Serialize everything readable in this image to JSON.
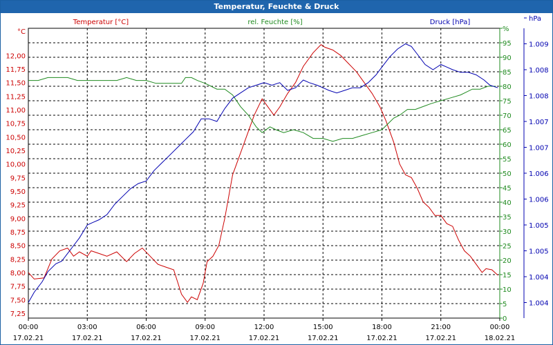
{
  "window": {
    "title": "Temperatur, Feuchte & Druck"
  },
  "colors": {
    "temperature": "#cc0000",
    "humidity": "#1f8a1f",
    "pressure": "#0000b0",
    "grid": "#000000",
    "titlebar": "#1f65ad"
  },
  "chart_data": {
    "type": "line",
    "title": "Temperatur, Feuchte & Druck",
    "legend": [
      "Temperatur [°C]",
      "rel. Feuchte [%]",
      "Druck [hPa]"
    ],
    "x_ticks": [
      {
        "t": 0,
        "time": "00:00",
        "date": "17.02.21"
      },
      {
        "t": 3,
        "time": "03:00",
        "date": "17.02.21"
      },
      {
        "t": 6,
        "time": "06:00",
        "date": "17.02.21"
      },
      {
        "t": 9,
        "time": "09:00",
        "date": "17.02.21"
      },
      {
        "t": 12,
        "time": "12:00",
        "date": "17.02.21"
      },
      {
        "t": 15,
        "time": "15:00",
        "date": "17.02.21"
      },
      {
        "t": 18,
        "time": "18:00",
        "date": "17.02.21"
      },
      {
        "t": 21,
        "time": "21:00",
        "date": "17.02.21"
      },
      {
        "t": 24,
        "time": "00:00",
        "date": "18.02.21"
      }
    ],
    "xlim": [
      0,
      24
    ],
    "axes": {
      "temperature": {
        "unit": "°C",
        "ylim": [
          7.16,
          12.5
        ],
        "ticks": [
          "7,25",
          "7,50",
          "7,75",
          "8,00",
          "8,25",
          "8,50",
          "8,75",
          "9,00",
          "9,25",
          "9,50",
          "9,75",
          "10,00",
          "10,25",
          "10,50",
          "10,75",
          "11,00",
          "11,25",
          "11,50",
          "11,75",
          "12,00"
        ],
        "tick_values": [
          7.25,
          7.5,
          7.75,
          8.0,
          8.25,
          8.5,
          8.75,
          9.0,
          9.25,
          9.5,
          9.75,
          10.0,
          10.25,
          10.5,
          10.75,
          11.0,
          11.25,
          11.5,
          11.75,
          12.0
        ]
      },
      "humidity": {
        "unit": "%",
        "ylim": [
          0,
          100
        ],
        "ticks": [
          "0",
          "5",
          "10",
          "15",
          "20",
          "25",
          "30",
          "35",
          "40",
          "45",
          "50",
          "55",
          "60",
          "65",
          "70",
          "75",
          "80",
          "85",
          "90",
          "95",
          "%"
        ],
        "tick_values": [
          0,
          5,
          10,
          15,
          20,
          25,
          30,
          35,
          40,
          45,
          50,
          55,
          60,
          65,
          70,
          75,
          80,
          85,
          90,
          95,
          100
        ]
      },
      "pressure": {
        "unit": "hPa",
        "ylim": [
          1003.5,
          1009.1
        ],
        "ticks": [
          "1.004",
          "1.004",
          "1.005",
          "1.005",
          "1.006",
          "1.006",
          "1.007",
          "1.007",
          "1.008",
          "1.008",
          "1.009",
          "hPa"
        ],
        "tick_values": [
          1003.8,
          1004.3,
          1004.8,
          1005.3,
          1005.8,
          1006.3,
          1006.8,
          1007.3,
          1007.8,
          1008.3,
          1008.8,
          1009.3
        ]
      }
    },
    "series": [
      {
        "name": "Temperatur [°C]",
        "axis": "temperature",
        "points": [
          [
            0,
            8.0
          ],
          [
            0.3,
            7.88
          ],
          [
            0.8,
            7.9
          ],
          [
            1.2,
            8.25
          ],
          [
            1.6,
            8.4
          ],
          [
            2.0,
            8.45
          ],
          [
            2.3,
            8.3
          ],
          [
            2.6,
            8.38
          ],
          [
            3.0,
            8.3
          ],
          [
            3.2,
            8.4
          ],
          [
            3.6,
            8.35
          ],
          [
            4.0,
            8.3
          ],
          [
            4.5,
            8.38
          ],
          [
            5.0,
            8.2
          ],
          [
            5.4,
            8.35
          ],
          [
            5.8,
            8.45
          ],
          [
            6.2,
            8.3
          ],
          [
            6.6,
            8.15
          ],
          [
            7.0,
            8.1
          ],
          [
            7.4,
            8.05
          ],
          [
            7.8,
            7.6
          ],
          [
            8.1,
            7.45
          ],
          [
            8.3,
            7.55
          ],
          [
            8.6,
            7.5
          ],
          [
            8.9,
            7.8
          ],
          [
            9.1,
            8.2
          ],
          [
            9.4,
            8.3
          ],
          [
            9.7,
            8.5
          ],
          [
            10.0,
            9.0
          ],
          [
            10.4,
            9.8
          ],
          [
            10.8,
            10.2
          ],
          [
            11.2,
            10.6
          ],
          [
            11.5,
            10.9
          ],
          [
            11.9,
            11.2
          ],
          [
            12.1,
            11.1
          ],
          [
            12.5,
            10.9
          ],
          [
            12.8,
            11.05
          ],
          [
            13.2,
            11.3
          ],
          [
            13.6,
            11.5
          ],
          [
            14.0,
            11.8
          ],
          [
            14.5,
            12.05
          ],
          [
            14.9,
            12.2
          ],
          [
            15.1,
            12.15
          ],
          [
            15.5,
            12.1
          ],
          [
            15.9,
            12.0
          ],
          [
            16.3,
            11.85
          ],
          [
            16.7,
            11.7
          ],
          [
            17.1,
            11.5
          ],
          [
            17.5,
            11.3
          ],
          [
            17.9,
            11.05
          ],
          [
            18.2,
            10.8
          ],
          [
            18.6,
            10.4
          ],
          [
            18.9,
            10.0
          ],
          [
            19.2,
            9.8
          ],
          [
            19.5,
            9.75
          ],
          [
            19.8,
            9.55
          ],
          [
            20.1,
            9.3
          ],
          [
            20.4,
            9.2
          ],
          [
            20.7,
            9.05
          ],
          [
            21.0,
            9.05
          ],
          [
            21.3,
            8.9
          ],
          [
            21.6,
            8.85
          ],
          [
            21.9,
            8.6
          ],
          [
            22.2,
            8.4
          ],
          [
            22.5,
            8.3
          ],
          [
            22.8,
            8.15
          ],
          [
            23.1,
            8.0
          ],
          [
            23.3,
            8.07
          ],
          [
            23.6,
            8.05
          ],
          [
            23.9,
            7.95
          ]
        ]
      },
      {
        "name": "rel. Feuchte [%]",
        "axis": "humidity",
        "points": [
          [
            0,
            82
          ],
          [
            0.5,
            82
          ],
          [
            1.0,
            83
          ],
          [
            1.5,
            83
          ],
          [
            2.0,
            83
          ],
          [
            2.5,
            82
          ],
          [
            3.0,
            82
          ],
          [
            3.5,
            82
          ],
          [
            4.0,
            82
          ],
          [
            4.5,
            82
          ],
          [
            5.0,
            83
          ],
          [
            5.5,
            82
          ],
          [
            6.0,
            82
          ],
          [
            6.5,
            81
          ],
          [
            7.0,
            81
          ],
          [
            7.5,
            81
          ],
          [
            7.8,
            81
          ],
          [
            8.0,
            83
          ],
          [
            8.3,
            83
          ],
          [
            8.6,
            82
          ],
          [
            9.0,
            81
          ],
          [
            9.3,
            80
          ],
          [
            9.6,
            79
          ],
          [
            10.0,
            79
          ],
          [
            10.4,
            77
          ],
          [
            10.8,
            73
          ],
          [
            11.2,
            70
          ],
          [
            11.6,
            66
          ],
          [
            11.9,
            64
          ],
          [
            12.3,
            66
          ],
          [
            12.6,
            65
          ],
          [
            13.0,
            64
          ],
          [
            13.5,
            65
          ],
          [
            14.0,
            64
          ],
          [
            14.5,
            62
          ],
          [
            15.0,
            62
          ],
          [
            15.5,
            61
          ],
          [
            16.0,
            62
          ],
          [
            16.5,
            62
          ],
          [
            17.0,
            63
          ],
          [
            17.5,
            64
          ],
          [
            18.0,
            65
          ],
          [
            18.3,
            67
          ],
          [
            18.6,
            69
          ],
          [
            18.9,
            70
          ],
          [
            19.3,
            72
          ],
          [
            19.7,
            72
          ],
          [
            20.1,
            73
          ],
          [
            20.5,
            74
          ],
          [
            21.0,
            75
          ],
          [
            21.5,
            76
          ],
          [
            22.0,
            77
          ],
          [
            22.3,
            78
          ],
          [
            22.6,
            79
          ],
          [
            23.0,
            79
          ],
          [
            23.4,
            80
          ],
          [
            23.8,
            80
          ]
        ]
      },
      {
        "name": "Druck [hPa]",
        "axis": "pressure",
        "points": [
          [
            0,
            1003.8
          ],
          [
            0.3,
            1004.0
          ],
          [
            0.7,
            1004.2
          ],
          [
            1.0,
            1004.4
          ],
          [
            1.4,
            1004.55
          ],
          [
            1.7,
            1004.6
          ],
          [
            2.0,
            1004.75
          ],
          [
            2.3,
            1004.9
          ],
          [
            2.6,
            1005.05
          ],
          [
            3.0,
            1005.3
          ],
          [
            3.3,
            1005.35
          ],
          [
            3.6,
            1005.4
          ],
          [
            4.0,
            1005.5
          ],
          [
            4.4,
            1005.7
          ],
          [
            4.8,
            1005.85
          ],
          [
            5.2,
            1006.0
          ],
          [
            5.6,
            1006.1
          ],
          [
            6.0,
            1006.15
          ],
          [
            6.4,
            1006.35
          ],
          [
            6.8,
            1006.5
          ],
          [
            7.2,
            1006.65
          ],
          [
            7.6,
            1006.8
          ],
          [
            8.0,
            1006.95
          ],
          [
            8.4,
            1007.1
          ],
          [
            8.8,
            1007.35
          ],
          [
            9.2,
            1007.35
          ],
          [
            9.6,
            1007.3
          ],
          [
            10.0,
            1007.55
          ],
          [
            10.4,
            1007.75
          ],
          [
            10.8,
            1007.85
          ],
          [
            11.2,
            1007.95
          ],
          [
            11.6,
            1008.0
          ],
          [
            12.0,
            1008.05
          ],
          [
            12.4,
            1008.0
          ],
          [
            12.8,
            1008.05
          ],
          [
            13.2,
            1007.9
          ],
          [
            13.6,
            1007.95
          ],
          [
            14.0,
            1008.1
          ],
          [
            14.3,
            1008.05
          ],
          [
            14.7,
            1008.0
          ],
          [
            15.0,
            1007.95
          ],
          [
            15.3,
            1007.9
          ],
          [
            15.7,
            1007.85
          ],
          [
            16.1,
            1007.9
          ],
          [
            16.5,
            1007.95
          ],
          [
            16.9,
            1007.95
          ],
          [
            17.3,
            1008.05
          ],
          [
            17.7,
            1008.2
          ],
          [
            18.0,
            1008.35
          ],
          [
            18.4,
            1008.55
          ],
          [
            18.8,
            1008.7
          ],
          [
            19.2,
            1008.8
          ],
          [
            19.5,
            1008.75
          ],
          [
            19.8,
            1008.6
          ],
          [
            20.2,
            1008.4
          ],
          [
            20.6,
            1008.3
          ],
          [
            21.0,
            1008.4
          ],
          [
            21.3,
            1008.35
          ],
          [
            21.6,
            1008.3
          ],
          [
            22.0,
            1008.25
          ],
          [
            22.4,
            1008.25
          ],
          [
            22.8,
            1008.2
          ],
          [
            23.2,
            1008.1
          ],
          [
            23.5,
            1008.0
          ],
          [
            23.9,
            1007.95
          ]
        ]
      }
    ]
  }
}
